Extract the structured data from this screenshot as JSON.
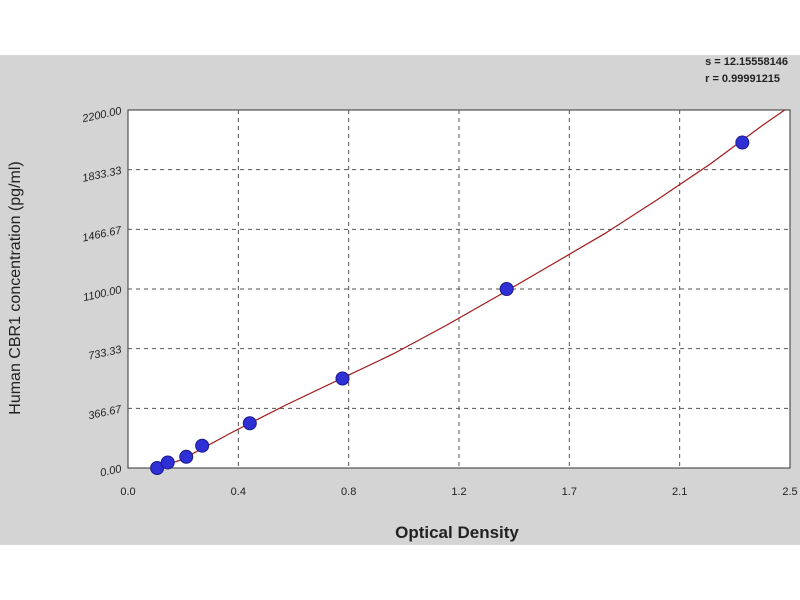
{
  "stats": {
    "line1": "s = 12.15558146",
    "line2": "r = 0.99991215"
  },
  "chart_data": {
    "type": "scatter",
    "xlabel": "Optical Density",
    "ylabel": "Human CBR1 concentration (pg/ml)",
    "xlim": [
      0.0,
      2.5
    ],
    "ylim": [
      0.0,
      2200.0
    ],
    "x_ticks": [
      0.0,
      0.4,
      0.8,
      1.2,
      1.7,
      2.1,
      2.5
    ],
    "x_tick_labels": [
      "0.0",
      "0.4",
      "0.8",
      "1.2",
      "1.7",
      "2.1",
      "2.5"
    ],
    "y_ticks": [
      0.0,
      366.67,
      733.33,
      1100.0,
      1466.67,
      1833.33,
      2200.0
    ],
    "y_tick_labels": [
      "0.00",
      "366.67",
      "733.33",
      "1100.00",
      "1466.67",
      "1833.33",
      "2200.00"
    ],
    "grid": true,
    "series": [
      {
        "points": [
          {
            "x": 0.11,
            "y": 0
          },
          {
            "x": 0.15,
            "y": 34
          },
          {
            "x": 0.22,
            "y": 69
          },
          {
            "x": 0.28,
            "y": 137
          },
          {
            "x": 0.46,
            "y": 275
          },
          {
            "x": 0.81,
            "y": 550
          },
          {
            "x": 1.43,
            "y": 1100
          },
          {
            "x": 2.32,
            "y": 2000
          }
        ],
        "color": "#2f2fd6"
      }
    ],
    "fit_curve": {
      "color": "#a01818",
      "x": [
        0.09,
        0.2,
        0.4,
        0.6,
        0.8,
        1.0,
        1.2,
        1.4,
        1.6,
        1.8,
        2.0,
        2.2,
        2.4,
        2.48
      ],
      "y": [
        -10,
        50,
        225,
        390,
        545,
        700,
        875,
        1060,
        1250,
        1440,
        1650,
        1870,
        2110,
        2200
      ]
    }
  }
}
